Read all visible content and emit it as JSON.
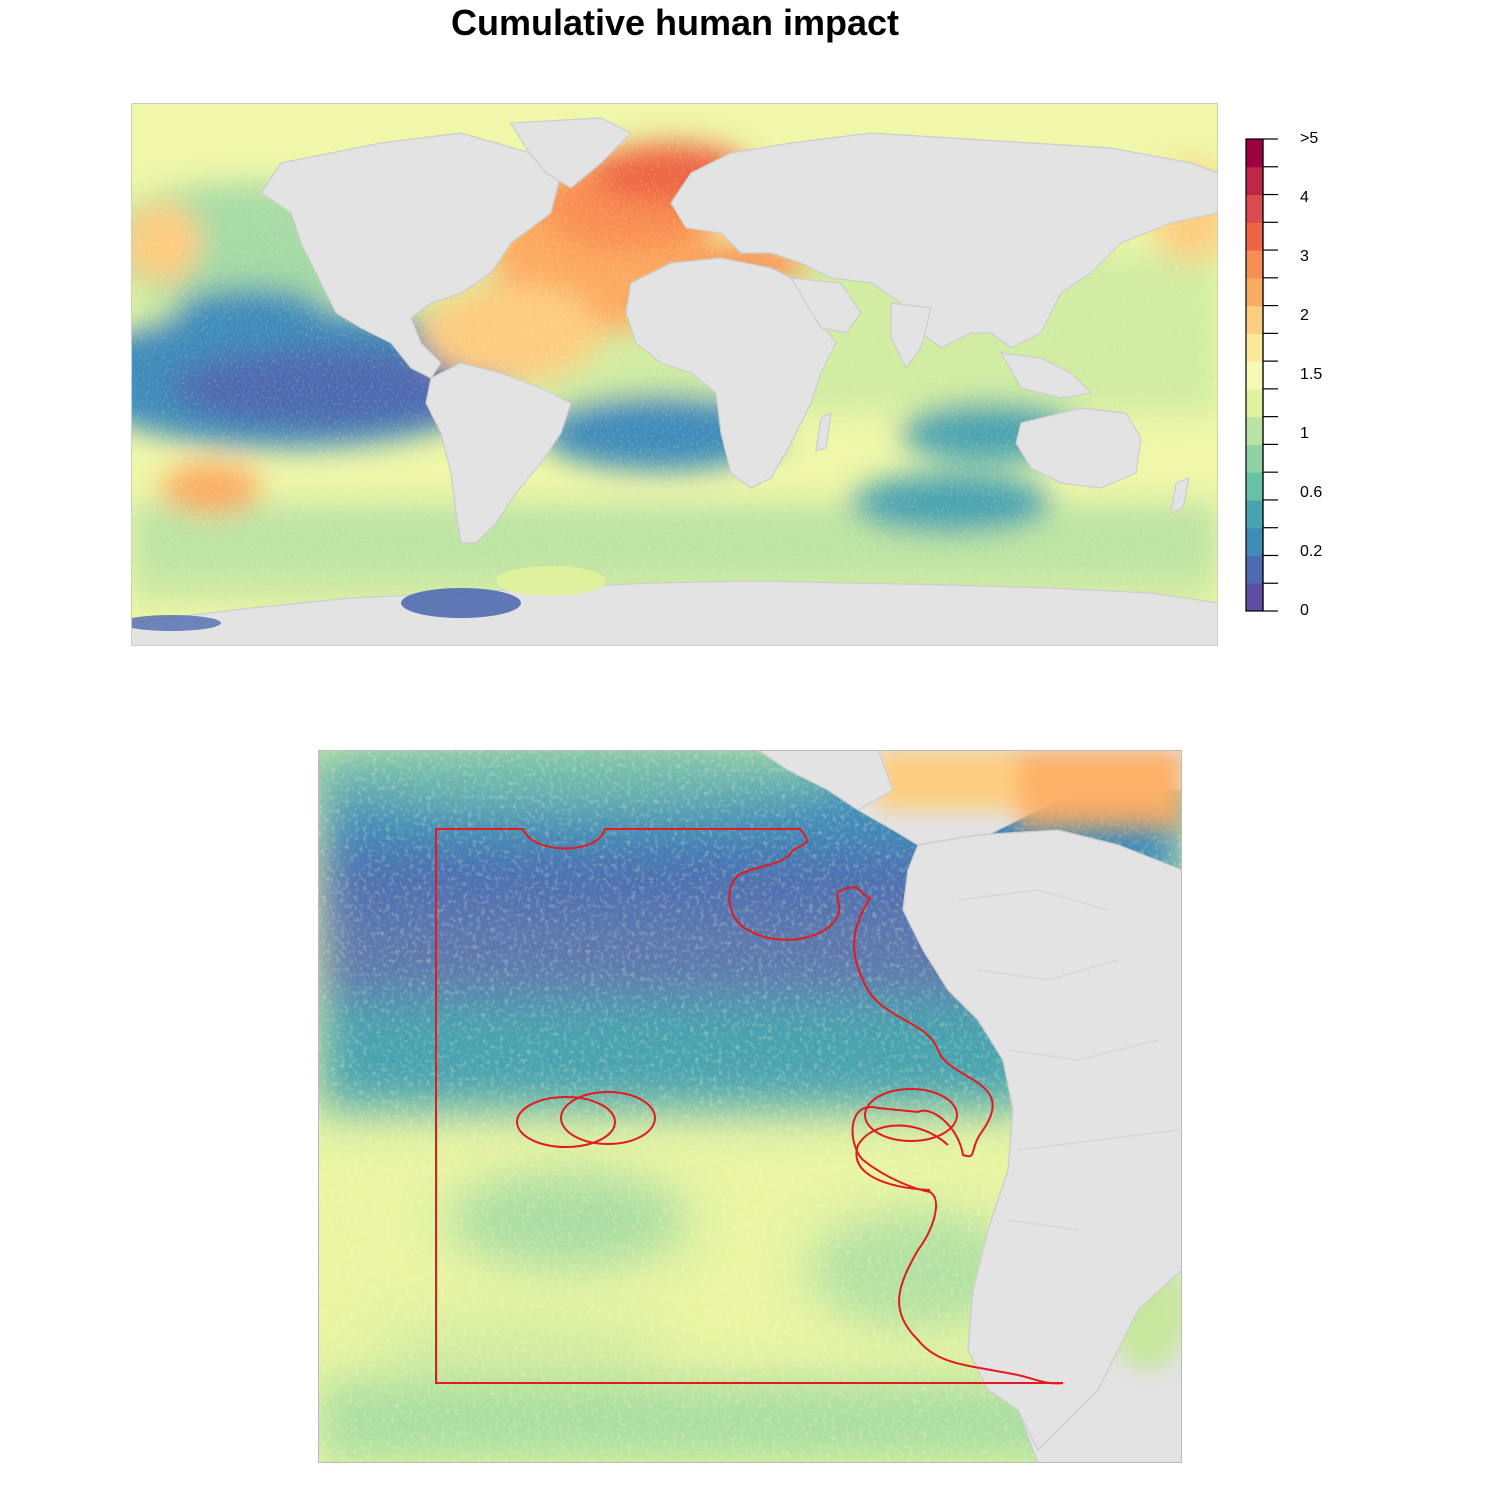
{
  "title": "Cumulative human impact",
  "legend": {
    "labels": [
      ">5",
      "4",
      "3",
      "2",
      "1.5",
      "1",
      "0.6",
      "0.2",
      "0"
    ],
    "colors": [
      "#5e4fa2",
      "#4f6bb0",
      "#3f8cba",
      "#4aa3b0",
      "#66c2a5",
      "#8fd3a4",
      "#b8e3a2",
      "#e0f29c",
      "#f5f9b5",
      "#fee899",
      "#fdcd80",
      "#fcaa61",
      "#f98e52",
      "#ee6545",
      "#da4a4e",
      "#be2546",
      "#9e0142"
    ]
  },
  "colors": {
    "land": "#e3e3e3",
    "boundary": "#cccccc",
    "eez_outline": "#e41a1c"
  }
}
